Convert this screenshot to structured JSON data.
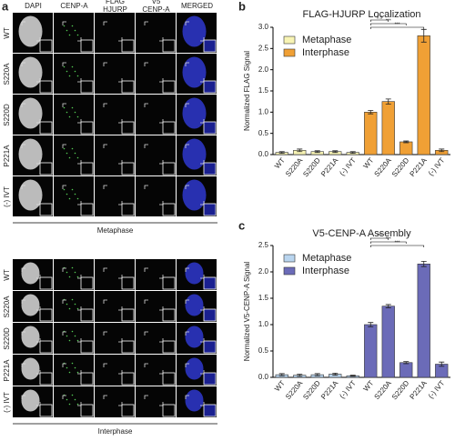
{
  "panel_a": {
    "letter": "a",
    "columns": [
      [
        "DAPI"
      ],
      [
        "CENP-A"
      ],
      [
        "FLAG",
        "HJURP"
      ],
      [
        "V5",
        "CENP-A"
      ],
      [
        "MERGED"
      ]
    ],
    "rows_top": [
      "WT",
      "S220A",
      "S220D",
      "P221A",
      "(-) IVT"
    ],
    "phase_top": "Metaphase",
    "rows_bottom": [
      "WT",
      "S220A",
      "S220D",
      "P221A",
      "(-) IVT"
    ],
    "phase_bottom": "Interphase"
  },
  "chart_data": [
    {
      "type": "bar",
      "letter": "b",
      "title": "FLAG-HJURP Localization",
      "y_label": "Normalized FLAG Signal",
      "categories": [
        "WT",
        "S220A",
        "S220D",
        "P221A",
        "(-) IVT",
        "WT",
        "S220A",
        "S220D",
        "P221A",
        "(-) IVT"
      ],
      "series": [
        {
          "name": "Metaphase",
          "color": "#f8f4b4",
          "values": [
            0.05,
            0.1,
            0.07,
            0.07,
            0.05,
            null,
            null,
            null,
            null,
            null
          ],
          "errors": [
            0.02,
            0.03,
            0.02,
            0.02,
            0.02,
            null,
            null,
            null,
            null,
            null
          ]
        },
        {
          "name": "Interphase",
          "color": "#f0a035",
          "values": [
            null,
            null,
            null,
            null,
            null,
            1.0,
            1.25,
            0.3,
            2.8,
            0.1
          ],
          "errors": [
            null,
            null,
            null,
            null,
            null,
            0.04,
            0.06,
            0.02,
            0.15,
            0.03
          ]
        }
      ],
      "ylim": [
        0,
        3
      ],
      "yticks": [
        {
          "value": 0,
          "label": "0.0"
        },
        {
          "value": 0.5,
          "label": "0.5"
        },
        {
          "value": 1,
          "label": "1.0"
        },
        {
          "value": 1.5,
          "label": "1.5"
        },
        {
          "value": 2,
          "label": "2.0"
        },
        {
          "value": 2.5,
          "label": "2.5"
        },
        {
          "value": 3,
          "label": "3.0"
        }
      ],
      "legend": "upper left",
      "annotations": [
        "n.s",
        "***",
        "***"
      ]
    },
    {
      "type": "bar",
      "letter": "c",
      "title": "V5-CENP-A Assembly",
      "y_label": "Normalized V5-CENP-A Signal",
      "categories": [
        "WT",
        "S220A",
        "S220D",
        "P221A",
        "(-) IVT",
        "WT",
        "S220A",
        "S220D",
        "P221A",
        "(-) IVT"
      ],
      "series": [
        {
          "name": "Metaphase",
          "color": "#b9d5ef",
          "values": [
            0.05,
            0.04,
            0.05,
            0.06,
            0.03,
            null,
            null,
            null,
            null,
            null
          ],
          "errors": [
            0.02,
            0.02,
            0.02,
            0.02,
            0.01,
            null,
            null,
            null,
            null,
            null
          ]
        },
        {
          "name": "Interphase",
          "color": "#6b6bb8",
          "values": [
            null,
            null,
            null,
            null,
            null,
            1.0,
            1.35,
            0.28,
            2.15,
            0.25
          ],
          "errors": [
            null,
            null,
            null,
            null,
            null,
            0.04,
            0.03,
            0.02,
            0.05,
            0.04
          ]
        }
      ],
      "ylim": [
        0,
        2.5
      ],
      "yticks": [
        {
          "value": 0,
          "label": "0.0"
        },
        {
          "value": 0.5,
          "label": "0.5"
        },
        {
          "value": 1,
          "label": "1.0"
        },
        {
          "value": 1.5,
          "label": "1.5"
        },
        {
          "value": 2,
          "label": "2.0"
        },
        {
          "value": 2.5,
          "label": "2.5"
        }
      ],
      "legend": "upper left",
      "annotations": [
        "***",
        "***",
        "***"
      ]
    }
  ]
}
